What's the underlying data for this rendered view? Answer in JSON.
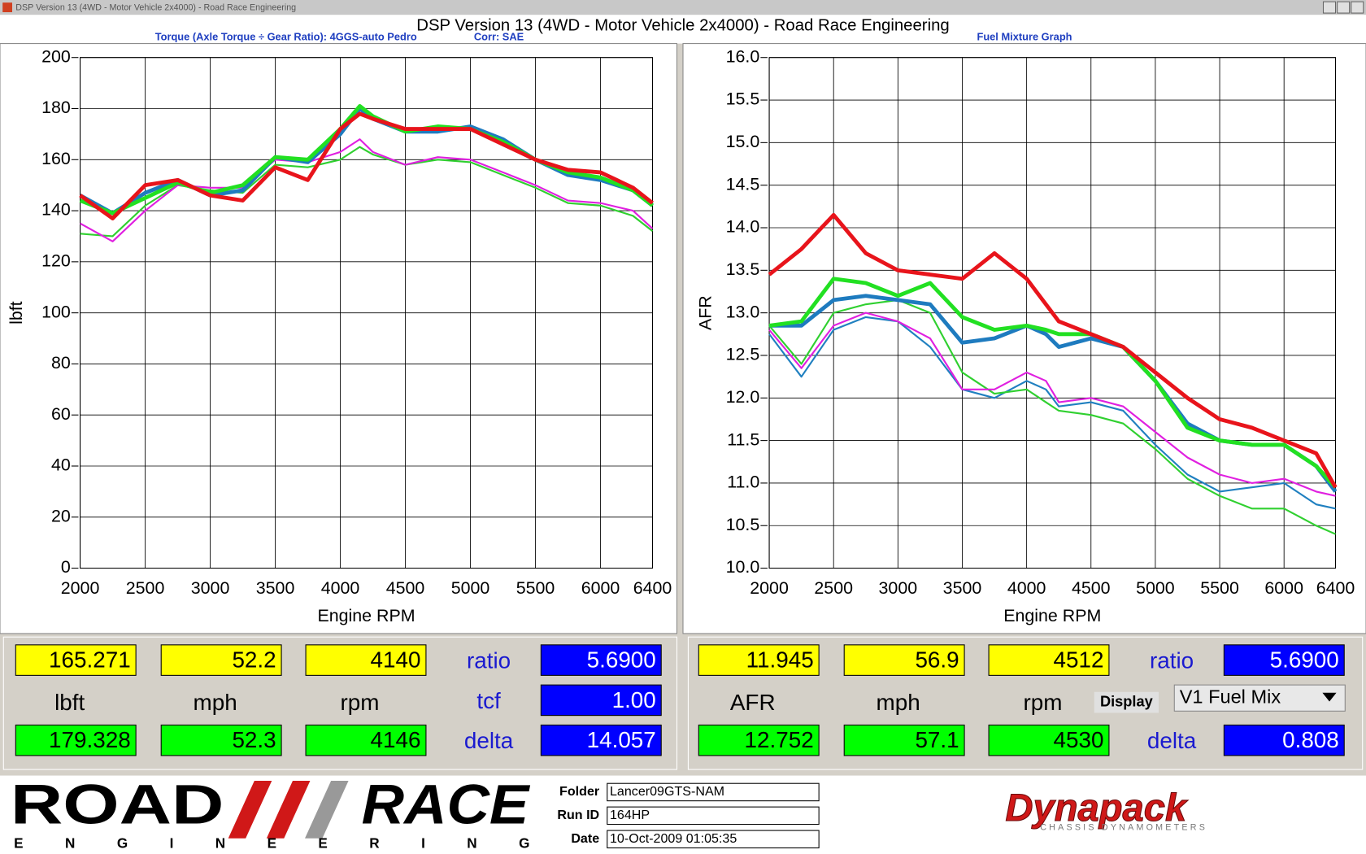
{
  "window_title": "DSP Version 13 (4WD - Motor Vehicle 2x4000) - Road Race Engineering",
  "header_title": "DSP Version 13 (4WD - Motor Vehicle 2x4000) - Road Race Engineering",
  "chart_data": [
    {
      "type": "line",
      "title": "Torque (Axle Torque ÷ Gear Ratio): 4GGS-auto Pedro",
      "correction": "Corr: SAE",
      "xlabel": "Engine RPM",
      "ylabel": "lbft",
      "grid": true,
      "xlim": [
        2000,
        6400
      ],
      "ylim": [
        0,
        200
      ],
      "xticks": [
        2000,
        2500,
        3000,
        3500,
        4000,
        4500,
        5000,
        5500,
        6000,
        6400
      ],
      "yticks": [
        0,
        20,
        40,
        60,
        80,
        100,
        120,
        140,
        160,
        180,
        200
      ],
      "x": [
        2000,
        2250,
        2500,
        2750,
        3000,
        3250,
        3500,
        3750,
        4000,
        4150,
        4250,
        4500,
        4750,
        5000,
        5250,
        5500,
        5750,
        6000,
        6250,
        6400
      ],
      "series": [
        {
          "color": "#e8141b",
          "values": [
            146,
            137,
            150,
            152,
            146,
            144,
            157,
            152,
            172,
            178,
            176,
            172,
            172,
            172,
            166,
            160,
            156,
            155,
            149,
            143
          ]
        },
        {
          "color": "#22e022",
          "values": [
            144,
            139,
            145,
            151,
            147,
            150,
            161,
            160,
            172,
            181,
            177,
            171,
            173,
            172,
            167,
            160,
            155,
            153,
            148,
            142
          ]
        },
        {
          "color": "#1e7bbf",
          "values": [
            146,
            139,
            147,
            152,
            146,
            148,
            161,
            159,
            170,
            180,
            176,
            171,
            171,
            173,
            168,
            160,
            154,
            152,
            148,
            142
          ]
        },
        {
          "color": "#e020e0",
          "values": [
            135,
            128,
            140,
            150,
            149,
            149,
            160,
            159,
            163,
            168,
            163,
            158,
            161,
            160,
            155,
            150,
            144,
            143,
            140,
            133
          ]
        },
        {
          "color": "#30d030",
          "values": [
            131,
            130,
            142,
            150,
            148,
            147,
            158,
            157,
            160,
            165,
            162,
            158,
            160,
            159,
            154,
            149,
            143,
            142,
            138,
            132
          ]
        }
      ]
    },
    {
      "type": "line",
      "title": "Fuel Mixture Graph",
      "xlabel": "Engine RPM",
      "ylabel": "AFR",
      "grid": true,
      "xlim": [
        2000,
        6400
      ],
      "ylim": [
        10,
        16
      ],
      "xticks": [
        2000,
        2500,
        3000,
        3500,
        4000,
        4500,
        5000,
        5500,
        6000,
        6400
      ],
      "yticks": [
        {
          "value": 10,
          "label": "10.0"
        },
        10.5,
        {
          "value": 11,
          "label": "11.0"
        },
        11.5,
        {
          "value": 12,
          "label": "12.0"
        },
        12.5,
        {
          "value": 13,
          "label": "13.0"
        },
        13.5,
        {
          "value": 14,
          "label": "14.0"
        },
        14.5,
        {
          "value": 15,
          "label": "15.0"
        },
        15.5,
        {
          "value": 16,
          "label": "16.0"
        }
      ],
      "x": [
        2000,
        2250,
        2500,
        2750,
        3000,
        3250,
        3500,
        3750,
        4000,
        4150,
        4250,
        4500,
        4750,
        5000,
        5250,
        5500,
        5750,
        6000,
        6250,
        6400
      ],
      "series": [
        {
          "color": "#e8141b",
          "values": [
            13.45,
            13.75,
            14.15,
            13.7,
            13.5,
            13.45,
            13.4,
            13.7,
            13.4,
            13.1,
            12.9,
            12.75,
            12.6,
            12.3,
            12.0,
            11.75,
            11.65,
            11.5,
            11.35,
            10.95
          ]
        },
        {
          "color": "#22e022",
          "values": [
            12.85,
            12.9,
            13.4,
            13.35,
            13.2,
            13.35,
            12.95,
            12.8,
            12.85,
            12.8,
            12.75,
            12.75,
            12.6,
            12.2,
            11.65,
            11.5,
            11.45,
            11.45,
            11.2,
            10.95
          ]
        },
        {
          "color": "#1e7bbf",
          "values": [
            12.85,
            12.85,
            13.15,
            13.2,
            13.15,
            13.1,
            12.65,
            12.7,
            12.85,
            12.75,
            12.6,
            12.7,
            12.6,
            12.2,
            11.7,
            11.5,
            11.45,
            11.45,
            11.2,
            10.9
          ]
        },
        {
          "color": "#e020e0",
          "values": [
            12.8,
            12.35,
            12.85,
            13.0,
            12.9,
            12.7,
            12.1,
            12.1,
            12.3,
            12.2,
            11.95,
            12.0,
            11.9,
            11.6,
            11.3,
            11.1,
            11.0,
            11.05,
            10.9,
            10.85
          ]
        },
        {
          "color": "#30d030",
          "values": [
            12.85,
            12.4,
            13.0,
            13.1,
            13.15,
            13.0,
            12.3,
            12.05,
            12.1,
            11.95,
            11.85,
            11.8,
            11.7,
            11.4,
            11.05,
            10.85,
            10.7,
            10.7,
            10.5,
            10.4
          ]
        },
        {
          "color": "#2080c0",
          "values": [
            12.75,
            12.25,
            12.8,
            12.95,
            12.9,
            12.6,
            12.1,
            12.0,
            12.2,
            12.1,
            11.9,
            11.95,
            11.85,
            11.45,
            11.1,
            10.9,
            10.95,
            11.0,
            10.75,
            10.7
          ]
        }
      ]
    }
  ],
  "readouts": [
    {
      "top": [
        "165.271",
        "52.2",
        "4140"
      ],
      "units": [
        "lbft",
        "mph",
        "rpm"
      ],
      "bottom": [
        "179.328",
        "52.3",
        "4146"
      ],
      "labels": [
        "ratio",
        "tcf",
        "delta"
      ],
      "blue": [
        "5.6900",
        "1.00",
        "14.057"
      ]
    },
    {
      "top": [
        "11.945",
        "56.9",
        "4512"
      ],
      "units": [
        "AFR",
        "mph",
        "rpm"
      ],
      "bottom": [
        "12.752",
        "57.1",
        "4530"
      ],
      "labels": [
        "ratio",
        "delta"
      ],
      "blue": [
        "5.6900",
        "0.808"
      ],
      "display": "Display",
      "select": "V1 Fuel Mix"
    }
  ],
  "footer": {
    "logo_top": [
      "ROAD",
      "RACE"
    ],
    "logo_bottom": "ENGINEERING",
    "fields": [
      {
        "label": "Folder",
        "value": "Lancer09GTS-NAM"
      },
      {
        "label": "Run ID",
        "value": "164HP"
      },
      {
        "label": "Date",
        "value": "10-Oct-2009  01:05:35"
      }
    ],
    "brand": "Dynapack",
    "brand_sub": "CHASSIS DYNAMOMETERS"
  }
}
